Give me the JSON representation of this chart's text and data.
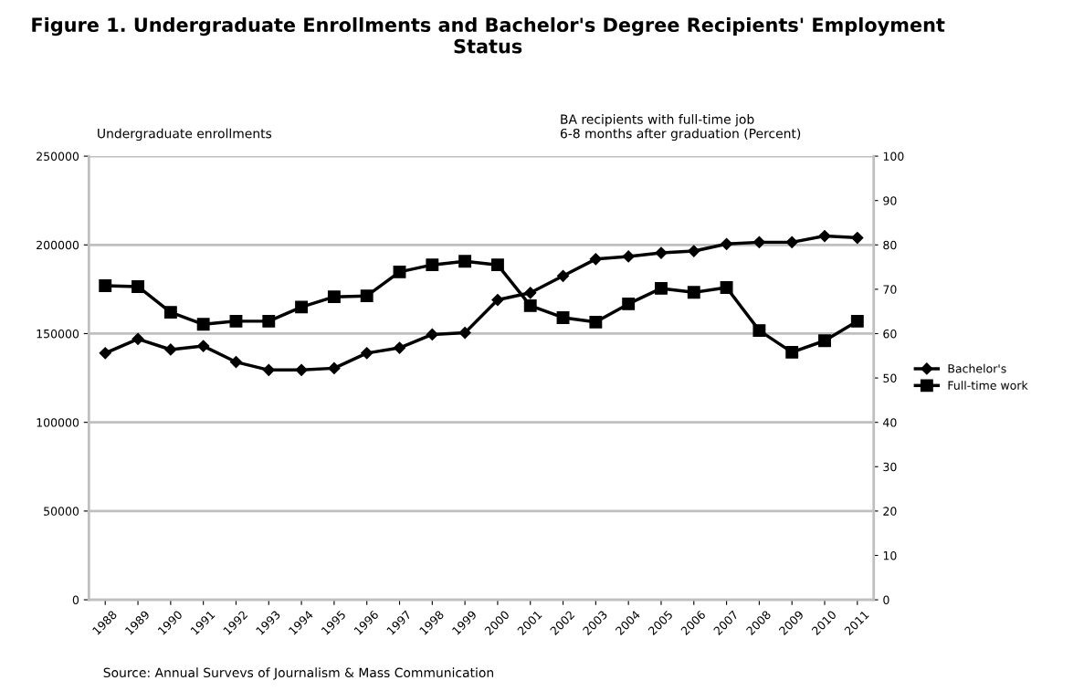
{
  "chart_data": {
    "type": "line",
    "title": "Figure 1. Undergraduate Enrollments and Bachelor's Degree Recipients' Employment Status",
    "ylabel": "Undergraduate enrollments",
    "y2label": "BA recipients with full-time job\n6-8 months after graduation (Percent)",
    "categories": [
      "1988",
      "1989",
      "1990",
      "1991",
      "1992",
      "1993",
      "1994",
      "1995",
      "1996",
      "1997",
      "1998",
      "1999",
      "2000",
      "2001",
      "2002",
      "2003",
      "2004",
      "2005",
      "2006",
      "2007",
      "2008",
      "2009",
      "2010",
      "2011"
    ],
    "series": [
      {
        "name": "Bachelor's",
        "color": "#000000",
        "marker": "diamond",
        "values": [
          139000,
          147000,
          141000,
          143000,
          134000,
          129500,
          129500,
          130500,
          139000,
          142000,
          149500,
          150500,
          169000,
          173000,
          182500,
          192000,
          193500,
          195500,
          196500,
          200500,
          201500,
          201500,
          205000,
          204000
        ]
      },
      {
        "name": "Full-time work",
        "color": "#000000",
        "marker": "square",
        "axis": "y2",
        "values": [
          70.8,
          70.6,
          64.8,
          62.1,
          62.8,
          62.8,
          66.0,
          68.3,
          68.5,
          73.9,
          75.5,
          76.3,
          75.5,
          66.3,
          63.6,
          62.6,
          66.7,
          70.2,
          69.3,
          70.4,
          60.7,
          55.8,
          58.4,
          62.8
        ]
      }
    ],
    "ylim": [
      0,
      250000
    ],
    "yticks": [
      0,
      50000,
      100000,
      150000,
      200000,
      250000
    ],
    "y2lim": [
      0,
      100
    ],
    "y2ticks": [
      0,
      10,
      20,
      30,
      40,
      50,
      60,
      70,
      80,
      90,
      100
    ],
    "grid": "y",
    "legend": "right",
    "line_style": "solid",
    "annotations": [
      "Source: Annual Survevs of Journalism & Mass Communication"
    ]
  }
}
